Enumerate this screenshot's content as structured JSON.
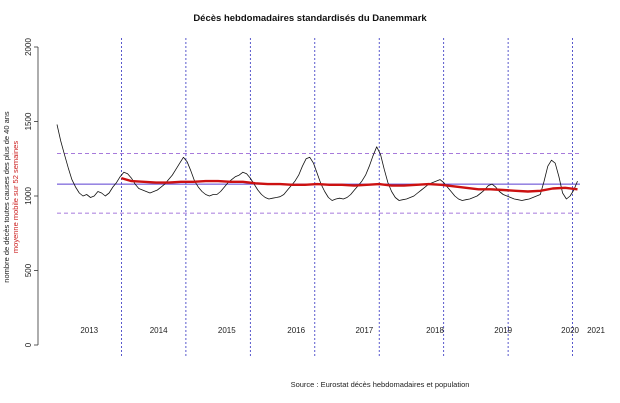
{
  "chart_data": {
    "type": "line",
    "title": "Décès hebdomadaires standardisés du Danemmark",
    "ylabel": "nombre de décès toutes causes des plus de 40 ans",
    "ylabel2": "moyenne mobile sur 52 semaines",
    "source": "Source : Eurostat décès hebdomadaires et population",
    "ylim": [
      0,
      2000
    ],
    "yticks": [
      "0",
      "500",
      "1000",
      "1500",
      "2000"
    ],
    "xlim_weeks": [
      0,
      422
    ],
    "years": [
      "2013",
      "2014",
      "2015",
      "2016",
      "2017",
      "2018",
      "2019",
      "2020",
      "2021"
    ],
    "year_label_weeks": [
      26,
      82,
      137,
      193,
      248,
      305,
      360,
      414,
      472
    ],
    "year_boundary_weeks": [
      52,
      104,
      156,
      208,
      260,
      312,
      364,
      416
    ],
    "reference_lines": {
      "mean": 1080,
      "upper": 1285,
      "lower": 885
    },
    "series": [
      {
        "name": "décès hebdomadaires",
        "color": "#111111",
        "points": [
          [
            0,
            1480
          ],
          [
            3,
            1370
          ],
          [
            6,
            1280
          ],
          [
            9,
            1190
          ],
          [
            12,
            1110
          ],
          [
            15,
            1060
          ],
          [
            18,
            1020
          ],
          [
            21,
            1000
          ],
          [
            24,
            1010
          ],
          [
            27,
            990
          ],
          [
            30,
            1000
          ],
          [
            33,
            1030
          ],
          [
            36,
            1020
          ],
          [
            39,
            1000
          ],
          [
            42,
            1020
          ],
          [
            45,
            1060
          ],
          [
            48,
            1090
          ],
          [
            51,
            1130
          ],
          [
            54,
            1160
          ],
          [
            57,
            1150
          ],
          [
            60,
            1120
          ],
          [
            63,
            1080
          ],
          [
            66,
            1050
          ],
          [
            69,
            1040
          ],
          [
            72,
            1030
          ],
          [
            75,
            1020
          ],
          [
            78,
            1030
          ],
          [
            81,
            1040
          ],
          [
            84,
            1060
          ],
          [
            87,
            1080
          ],
          [
            90,
            1110
          ],
          [
            93,
            1140
          ],
          [
            96,
            1180
          ],
          [
            99,
            1220
          ],
          [
            102,
            1260
          ],
          [
            105,
            1230
          ],
          [
            108,
            1170
          ],
          [
            111,
            1100
          ],
          [
            114,
            1060
          ],
          [
            117,
            1030
          ],
          [
            120,
            1010
          ],
          [
            123,
            1000
          ],
          [
            126,
            1010
          ],
          [
            129,
            1010
          ],
          [
            132,
            1030
          ],
          [
            135,
            1060
          ],
          [
            138,
            1090
          ],
          [
            141,
            1110
          ],
          [
            144,
            1130
          ],
          [
            147,
            1140
          ],
          [
            150,
            1160
          ],
          [
            153,
            1150
          ],
          [
            156,
            1120
          ],
          [
            159,
            1080
          ],
          [
            162,
            1040
          ],
          [
            165,
            1010
          ],
          [
            168,
            990
          ],
          [
            171,
            980
          ],
          [
            174,
            985
          ],
          [
            177,
            990
          ],
          [
            180,
            995
          ],
          [
            183,
            1010
          ],
          [
            186,
            1040
          ],
          [
            189,
            1070
          ],
          [
            192,
            1100
          ],
          [
            195,
            1140
          ],
          [
            198,
            1200
          ],
          [
            201,
            1250
          ],
          [
            204,
            1260
          ],
          [
            207,
            1220
          ],
          [
            210,
            1150
          ],
          [
            213,
            1080
          ],
          [
            216,
            1030
          ],
          [
            219,
            990
          ],
          [
            222,
            970
          ],
          [
            225,
            980
          ],
          [
            228,
            985
          ],
          [
            231,
            980
          ],
          [
            234,
            990
          ],
          [
            237,
            1010
          ],
          [
            240,
            1040
          ],
          [
            243,
            1070
          ],
          [
            246,
            1100
          ],
          [
            249,
            1140
          ],
          [
            252,
            1200
          ],
          [
            255,
            1270
          ],
          [
            258,
            1330
          ],
          [
            261,
            1280
          ],
          [
            264,
            1180
          ],
          [
            267,
            1090
          ],
          [
            270,
            1030
          ],
          [
            273,
            990
          ],
          [
            276,
            970
          ],
          [
            279,
            975
          ],
          [
            282,
            980
          ],
          [
            285,
            990
          ],
          [
            288,
            1000
          ],
          [
            291,
            1020
          ],
          [
            294,
            1040
          ],
          [
            297,
            1060
          ],
          [
            300,
            1080
          ],
          [
            303,
            1090
          ],
          [
            306,
            1100
          ],
          [
            309,
            1110
          ],
          [
            312,
            1090
          ],
          [
            315,
            1060
          ],
          [
            318,
            1030
          ],
          [
            321,
            1000
          ],
          [
            324,
            980
          ],
          [
            327,
            970
          ],
          [
            330,
            975
          ],
          [
            333,
            980
          ],
          [
            336,
            990
          ],
          [
            339,
            1000
          ],
          [
            342,
            1020
          ],
          [
            345,
            1040
          ],
          [
            348,
            1070
          ],
          [
            351,
            1080
          ],
          [
            354,
            1060
          ],
          [
            357,
            1030
          ],
          [
            360,
            1010
          ],
          [
            363,
            1000
          ],
          [
            366,
            990
          ],
          [
            369,
            980
          ],
          [
            372,
            975
          ],
          [
            375,
            970
          ],
          [
            378,
            975
          ],
          [
            381,
            980
          ],
          [
            384,
            990
          ],
          [
            387,
            1000
          ],
          [
            390,
            1010
          ],
          [
            393,
            1100
          ],
          [
            396,
            1200
          ],
          [
            399,
            1240
          ],
          [
            402,
            1220
          ],
          [
            405,
            1130
          ],
          [
            408,
            1020
          ],
          [
            411,
            980
          ],
          [
            414,
            1000
          ],
          [
            417,
            1040
          ],
          [
            420,
            1100
          ]
        ]
      },
      {
        "name": "moyenne mobile sur 52 semaines",
        "color": "#cc1111",
        "points": [
          [
            52,
            1120
          ],
          [
            60,
            1100
          ],
          [
            70,
            1095
          ],
          [
            80,
            1090
          ],
          [
            90,
            1090
          ],
          [
            100,
            1095
          ],
          [
            110,
            1095
          ],
          [
            120,
            1100
          ],
          [
            130,
            1100
          ],
          [
            140,
            1095
          ],
          [
            150,
            1095
          ],
          [
            160,
            1085
          ],
          [
            170,
            1080
          ],
          [
            180,
            1080
          ],
          [
            190,
            1075
          ],
          [
            200,
            1075
          ],
          [
            210,
            1080
          ],
          [
            220,
            1075
          ],
          [
            230,
            1075
          ],
          [
            240,
            1070
          ],
          [
            250,
            1075
          ],
          [
            260,
            1080
          ],
          [
            270,
            1070
          ],
          [
            280,
            1070
          ],
          [
            290,
            1075
          ],
          [
            300,
            1080
          ],
          [
            310,
            1075
          ],
          [
            320,
            1065
          ],
          [
            330,
            1055
          ],
          [
            340,
            1045
          ],
          [
            350,
            1045
          ],
          [
            360,
            1040
          ],
          [
            370,
            1035
          ],
          [
            380,
            1030
          ],
          [
            390,
            1035
          ],
          [
            400,
            1050
          ],
          [
            410,
            1055
          ],
          [
            420,
            1045
          ]
        ]
      }
    ]
  }
}
